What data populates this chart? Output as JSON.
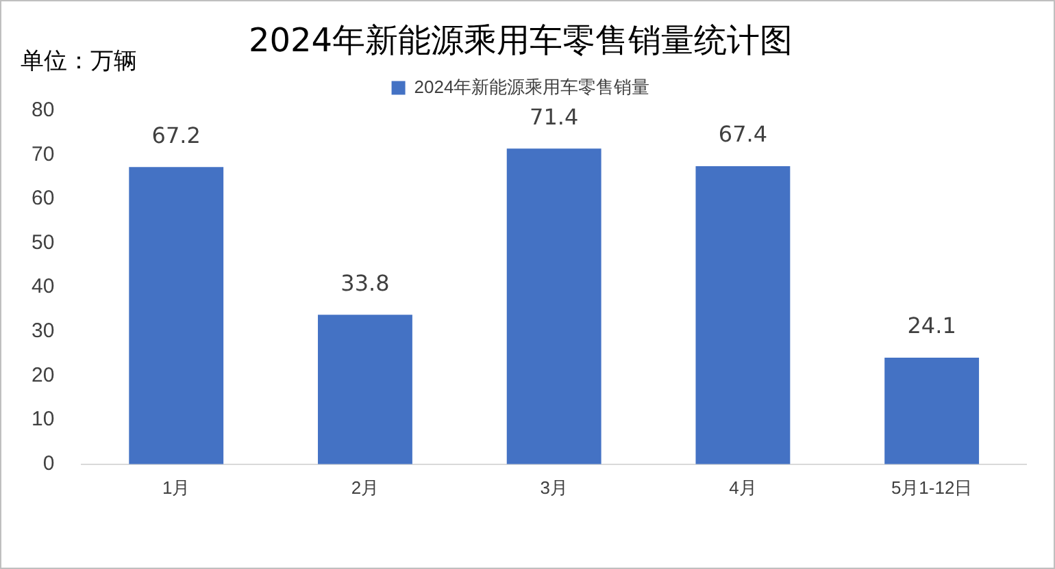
{
  "chart_data": {
    "type": "bar",
    "title": "2024年新能源乘用车零售销量统计图",
    "annotations": [
      "单位：万辆"
    ],
    "categories": [
      "1月",
      "2月",
      "3月",
      "4月",
      "5月1-12日"
    ],
    "series": [
      {
        "name": "2024年新能源乘用车零售销量",
        "color": "#4472c4",
        "values": [
          67.2,
          33.8,
          71.4,
          67.4,
          24.1
        ]
      }
    ],
    "ylim": [
      0,
      80
    ],
    "yticks": [
      0,
      10,
      20,
      30,
      40,
      50,
      60,
      70,
      80
    ],
    "grid": false,
    "legend": "top",
    "data_labels": true
  }
}
